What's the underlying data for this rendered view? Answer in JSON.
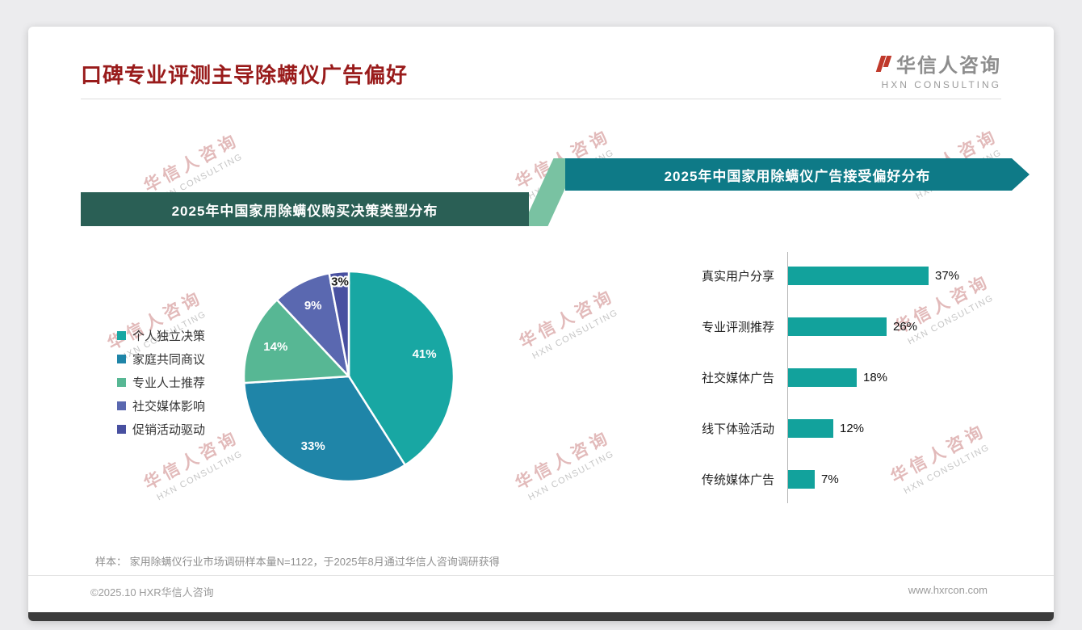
{
  "page": {
    "title": "口碑专业评测主导除螨仪广告偏好",
    "logo": {
      "cn": "华信人咨询",
      "en": "HXN CONSULTING"
    },
    "watermark": {
      "cn": "华信人咨询",
      "en": "HXN CONSULTING"
    },
    "note": "样本： 家用除螨仪行业市场调研样本量N=1122，于2025年8月通过华信人咨询调研获得",
    "footer_left": "©2025.10 HXR华信人咨询",
    "footer_right": "www.hxrcon.com"
  },
  "chart_data": [
    {
      "type": "pie",
      "title": "2025年中国家用除螨仪购买决策类型分布",
      "labels": [
        "个人独立决策",
        "家庭共同商议",
        "专业人士推荐",
        "社交媒体影响",
        "促销活动驱动"
      ],
      "values": [
        41,
        33,
        14,
        9,
        3
      ],
      "data_labels": [
        "41%",
        "33%",
        "14%",
        "9%",
        "3%"
      ],
      "colors": [
        "#18a7a3",
        "#1f85a8",
        "#57b794",
        "#5a68b0",
        "#4850a0"
      ],
      "legend_position": "left",
      "start_angle_deg": -90,
      "direction": "clockwise"
    },
    {
      "type": "bar",
      "title": "2025年中国家用除螨仪广告接受偏好分布",
      "orientation": "horizontal",
      "categories": [
        "真实用户分享",
        "专业评测推荐",
        "社交媒体广告",
        "线下体验活动",
        "传统媒体广告"
      ],
      "values": [
        37,
        26,
        18,
        12,
        7
      ],
      "data_labels": [
        "37%",
        "26%",
        "18%",
        "12%",
        "7%"
      ],
      "bar_color": "#12a29c",
      "xlim": [
        0,
        40
      ],
      "grid": false
    }
  ]
}
